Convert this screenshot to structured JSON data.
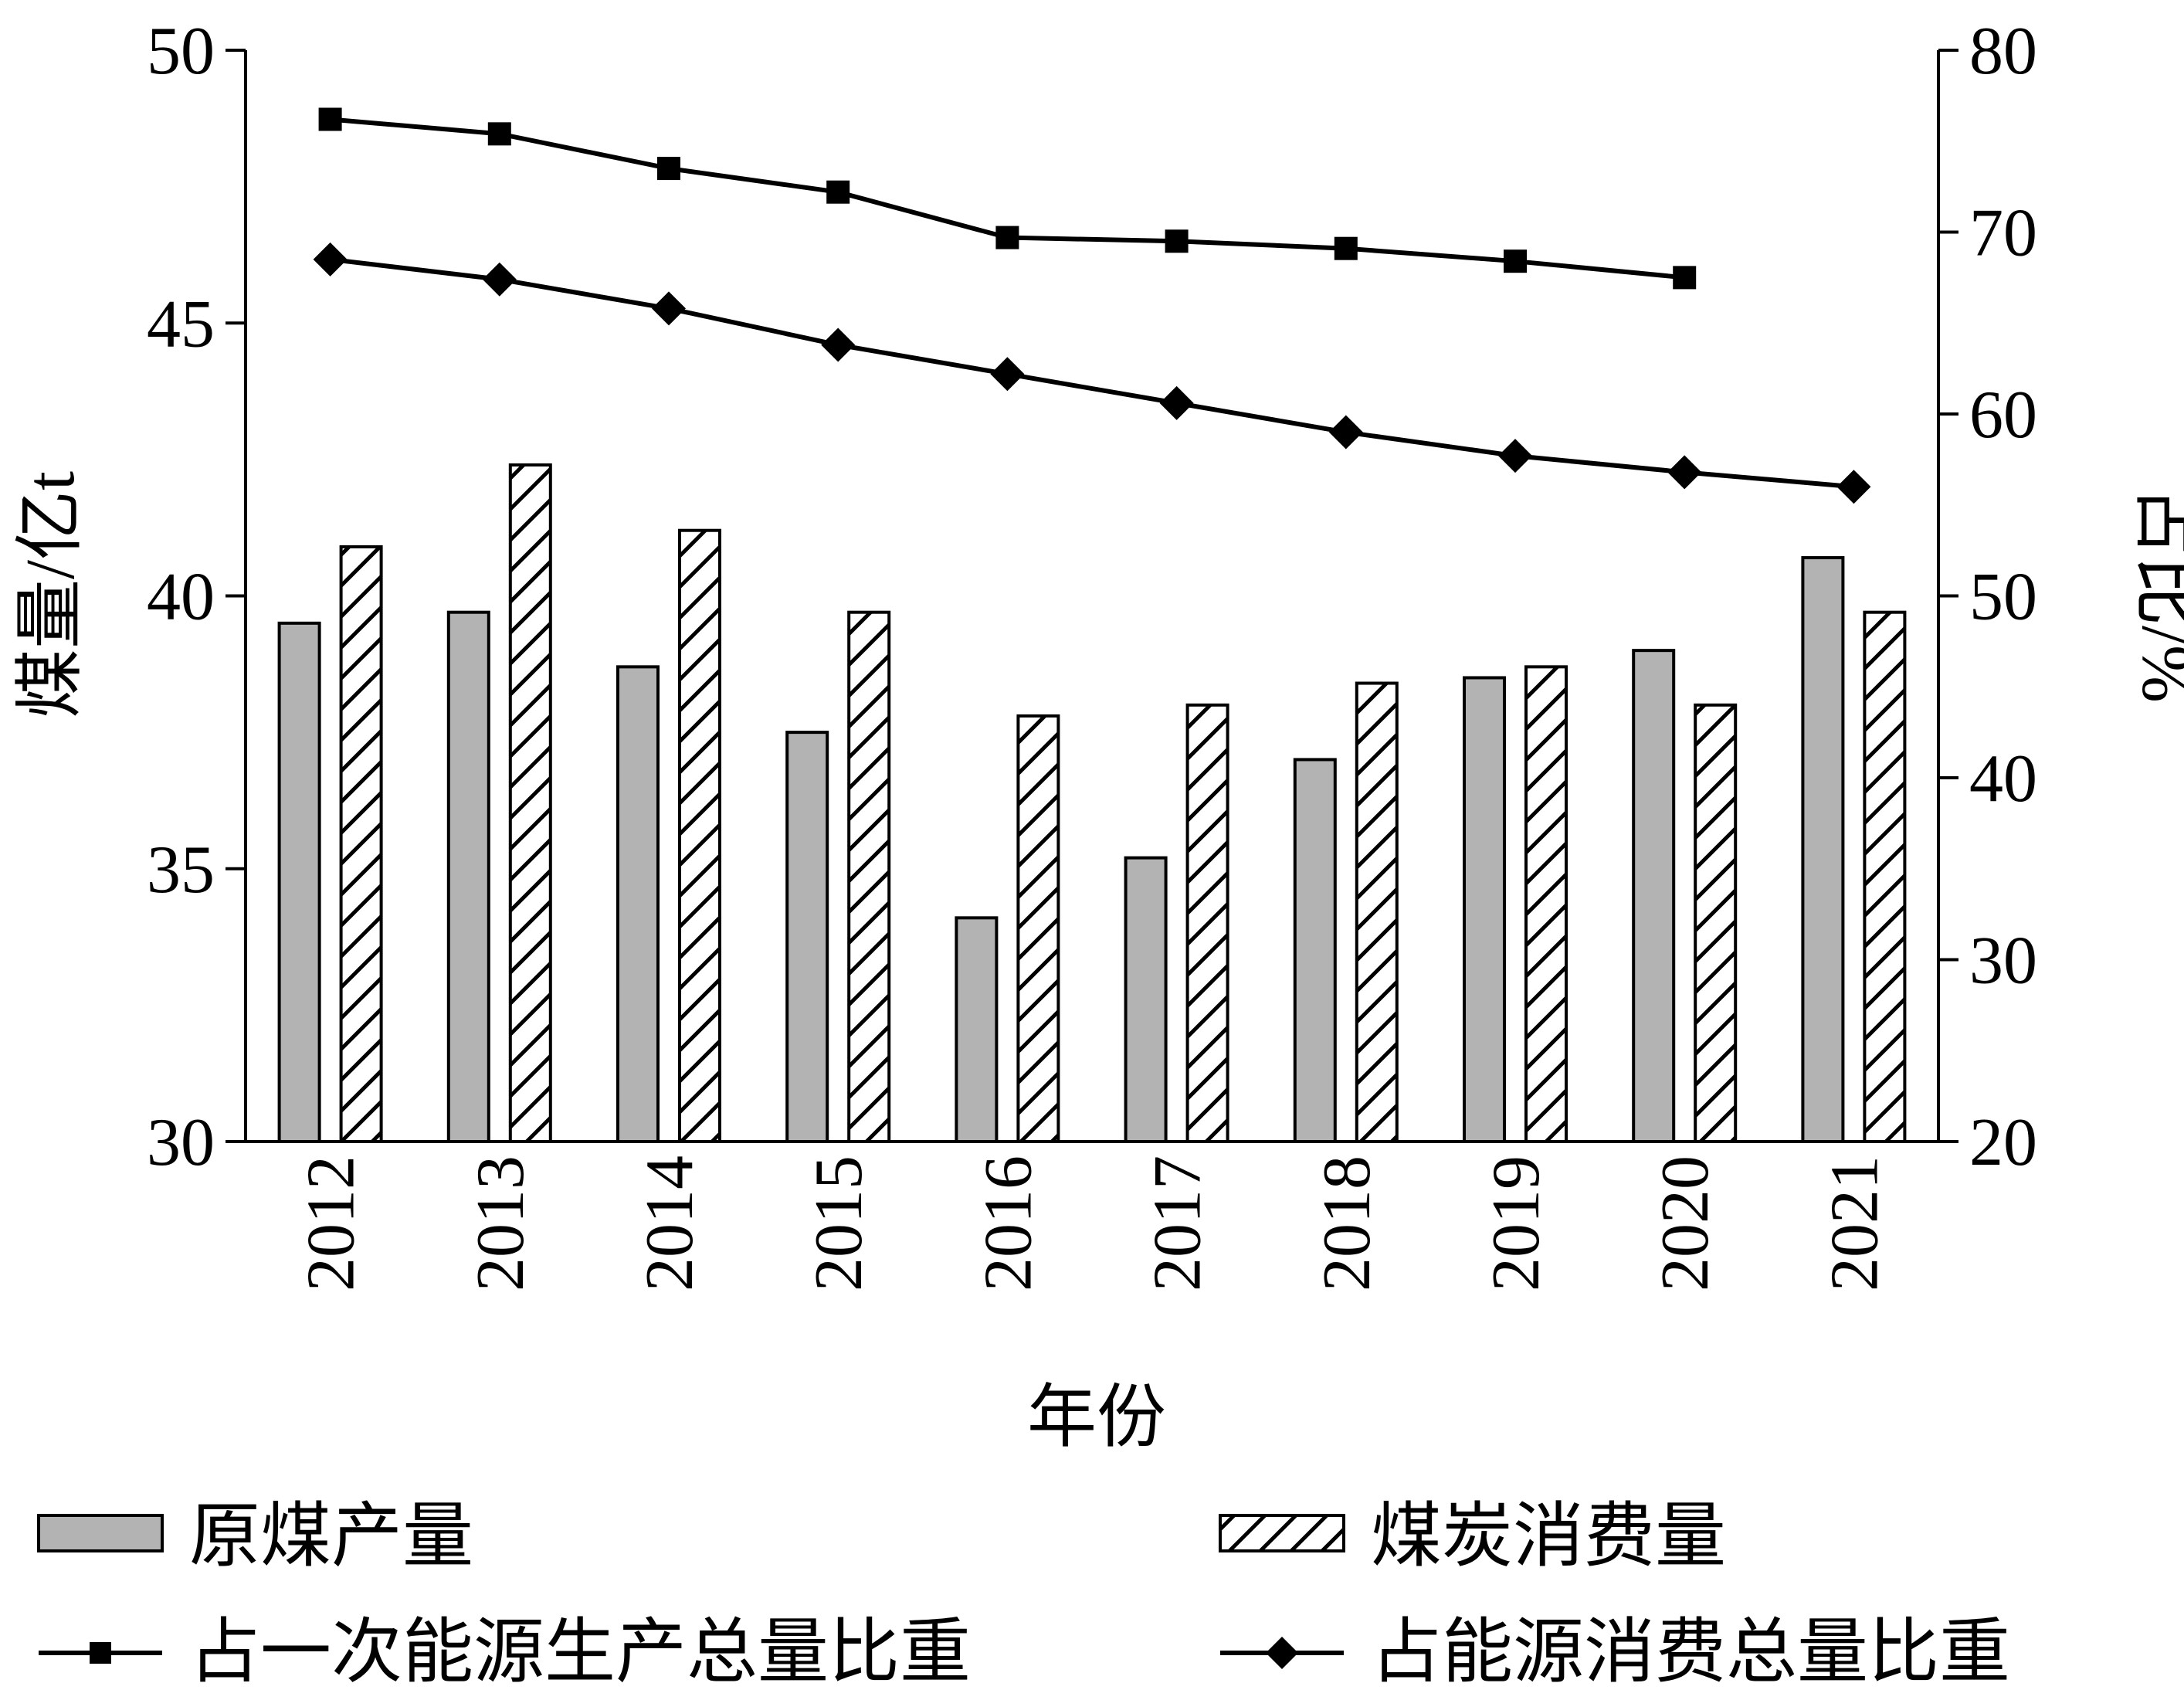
{
  "chart_data": {
    "type": "bar",
    "categories": [
      "2012",
      "2013",
      "2014",
      "2015",
      "2016",
      "2017",
      "2018",
      "2019",
      "2020",
      "2021"
    ],
    "xlabel": "年份",
    "ylabel_left": "煤量/亿t",
    "ylabel_right": "占比/%",
    "ylim_left": [
      30,
      50
    ],
    "ylim_right": [
      20,
      80
    ],
    "yticks_left": [
      "30",
      "35",
      "40",
      "45",
      "50"
    ],
    "yticks_right": [
      "20",
      "30",
      "40",
      "50",
      "60",
      "70",
      "80"
    ],
    "grid": false,
    "legend_position": "bottom",
    "series": [
      {
        "name": "原煤产量",
        "kind": "bar",
        "axis": "left",
        "fill": "#b3b3b3",
        "values": [
          39.5,
          39.7,
          38.7,
          37.5,
          34.1,
          35.2,
          37.0,
          38.5,
          39.0,
          40.7
        ]
      },
      {
        "name": "煤炭消费量",
        "kind": "bar",
        "axis": "left",
        "fill": "hatch",
        "values": [
          40.9,
          42.4,
          41.2,
          39.7,
          37.8,
          38.0,
          38.4,
          38.7,
          38.0,
          39.7
        ]
      },
      {
        "name": "占一次能源生产总量比重",
        "kind": "line",
        "axis": "right",
        "marker": "square",
        "values": [
          76.2,
          75.4,
          73.5,
          72.2,
          69.7,
          69.5,
          69.1,
          68.4,
          67.5,
          null
        ]
      },
      {
        "name": "占能源消费总量比重",
        "kind": "line",
        "axis": "right",
        "marker": "diamond",
        "values": [
          68.5,
          67.4,
          65.8,
          63.8,
          62.2,
          60.6,
          59.0,
          57.7,
          56.8,
          56.0
        ]
      }
    ]
  }
}
